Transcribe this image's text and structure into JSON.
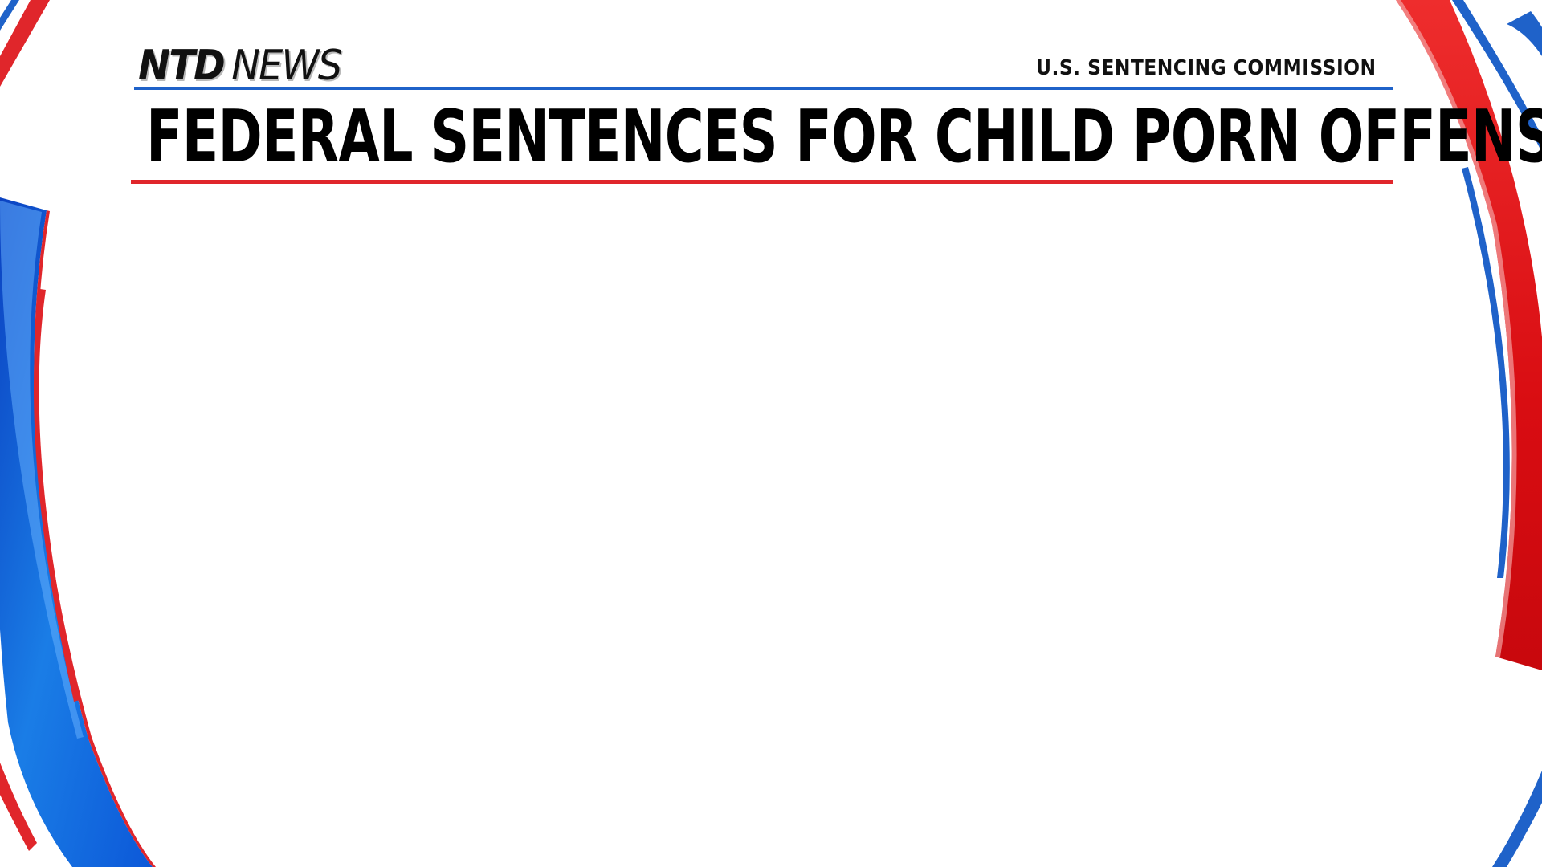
{
  "brand": {
    "ntd": "NTD",
    "news": "NEWS"
  },
  "source_label": "U.S. SENTENCING COMMISSION",
  "headline": "FEDERAL SENTENCES FOR CHILD PORN OFFENSES",
  "colors": {
    "accent_blue": "#1f62c9",
    "accent_red": "#e0262b",
    "background": "#ffffff",
    "text": "#000000"
  }
}
